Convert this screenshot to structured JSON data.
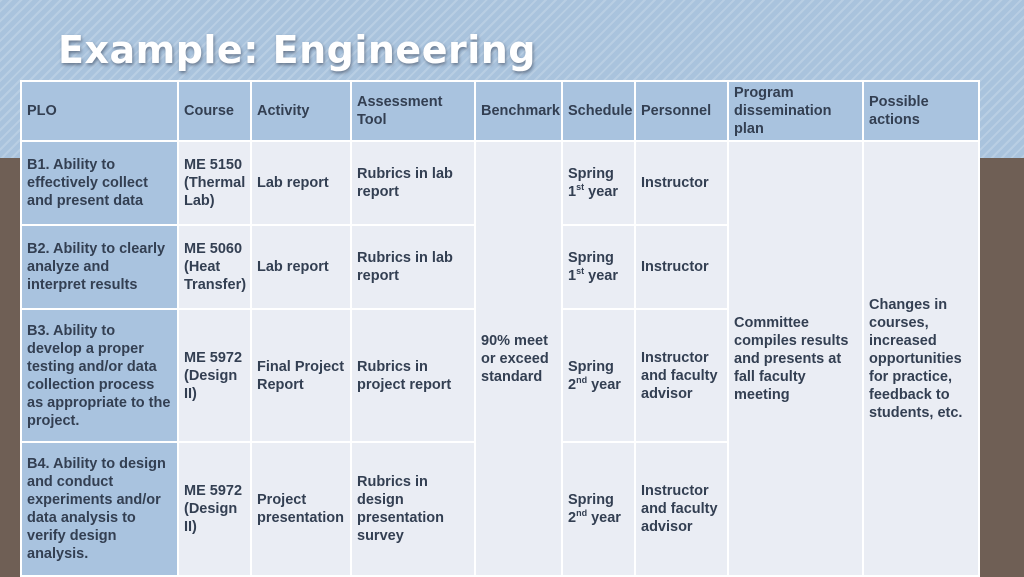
{
  "title": "Example: Engineering",
  "headers": {
    "plo": "PLO",
    "course": "Course",
    "activity": "Activity",
    "assessment_tool": "Assessment Tool",
    "benchmark": "Benchmark",
    "schedule": "Schedule",
    "personnel": "Personnel",
    "program_dissemination_plan": "Program dissemination plan",
    "possible_actions": "Possible actions"
  },
  "rows": [
    {
      "plo": "B1. Ability to effectively collect and present data",
      "course": "ME 5150 (Thermal Lab)",
      "activity": "Lab report",
      "assessment_tool": "Rubrics in lab report",
      "schedule_term": "Spring",
      "schedule_year_num": "1",
      "schedule_year_sup": "st",
      "schedule_year_word": "year",
      "personnel": "Instructor"
    },
    {
      "plo": "B2. Ability to clearly analyze and interpret results",
      "course": "ME 5060 (Heat Transfer)",
      "activity": "Lab report",
      "assessment_tool": "Rubrics in lab report",
      "schedule_term": "Spring",
      "schedule_year_num": "1",
      "schedule_year_sup": "st",
      "schedule_year_word": "year",
      "personnel": "Instructor"
    },
    {
      "plo": "B3. Ability to develop a proper testing and/or data collection process as appropriate to the project.",
      "course": "ME 5972 (Design II)",
      "activity": "Final Project Report",
      "assessment_tool": "Rubrics in project report",
      "schedule_term": "Spring",
      "schedule_year_num": "2",
      "schedule_year_sup": "nd",
      "schedule_year_word": "year",
      "personnel": "Instructor and faculty advisor"
    },
    {
      "plo": "B4. Ability to design and conduct experiments and/or data analysis to verify design analysis.",
      "course": "ME 5972 (Design II)",
      "activity": "Project presentation",
      "assessment_tool": "Rubrics in design presentation survey",
      "schedule_term": "Spring",
      "schedule_year_num": "2",
      "schedule_year_sup": "nd",
      "schedule_year_word": "year",
      "personnel": "Instructor and faculty advisor"
    }
  ],
  "benchmark": "90% meet or exceed standard",
  "dissemination": "Committee compiles results and presents at fall faculty meeting",
  "possible_actions": "Changes in courses, increased opportunities for practice, feedback to students, etc.",
  "colors": {
    "header_bg": "#a9c3df",
    "cell_bg": "#eaedf4",
    "text": "#333f52",
    "band": "#a9c3dd",
    "background": "#6f5f55"
  }
}
